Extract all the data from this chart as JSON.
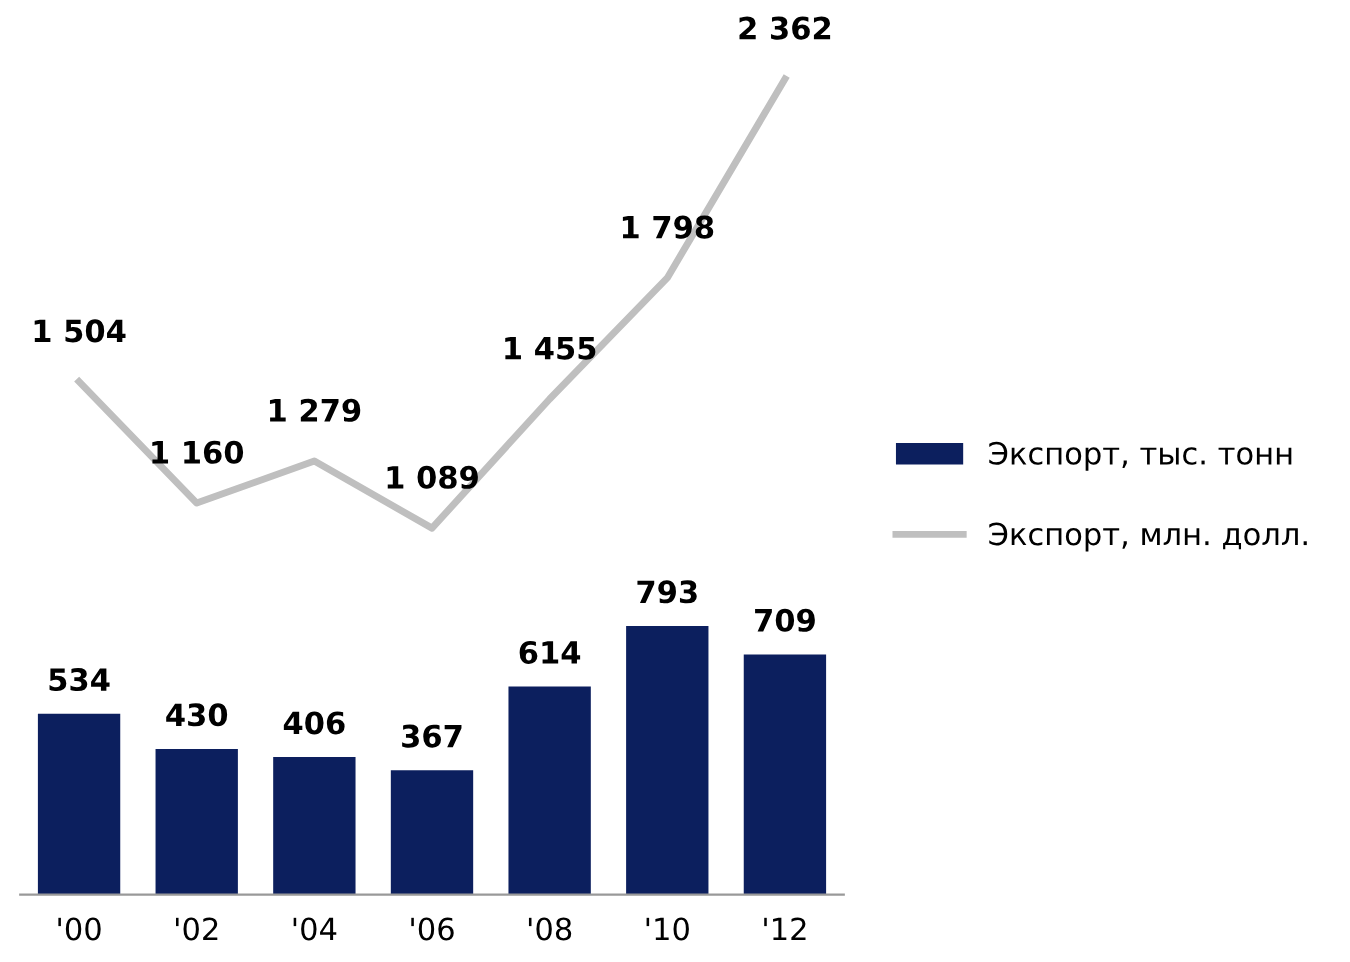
{
  "chart_data": [
    {
      "type": "line",
      "categories": [
        null,
        null,
        null,
        null,
        null,
        null,
        null
      ],
      "series": [
        {
          "name": "Экспорт, млн. долл.",
          "color": "#bfbfbf",
          "values": [
            1504,
            1160,
            1279,
            1089,
            1455,
            1798,
            2362
          ],
          "value_labels": [
            "1 504",
            "1 160",
            "1 279",
            "1 089",
            "1 455",
            "1 798",
            "2 362"
          ]
        }
      ],
      "legend": "bottom right",
      "tick_labels": false
    },
    {
      "type": "bar",
      "categories": [
        "'00",
        "'02",
        "'04",
        "'06",
        "'08",
        "'10",
        "'12"
      ],
      "series": [
        {
          "name": "Экспорт, тыс. тонн",
          "color": "#0c1f5e",
          "values": [
            534,
            430,
            406,
            367,
            614,
            793,
            709
          ],
          "value_labels": [
            "534",
            "430",
            "406",
            "367",
            "614",
            "793",
            "709"
          ]
        }
      ],
      "legend": "top right",
      "tick_labels": "x"
    }
  ]
}
